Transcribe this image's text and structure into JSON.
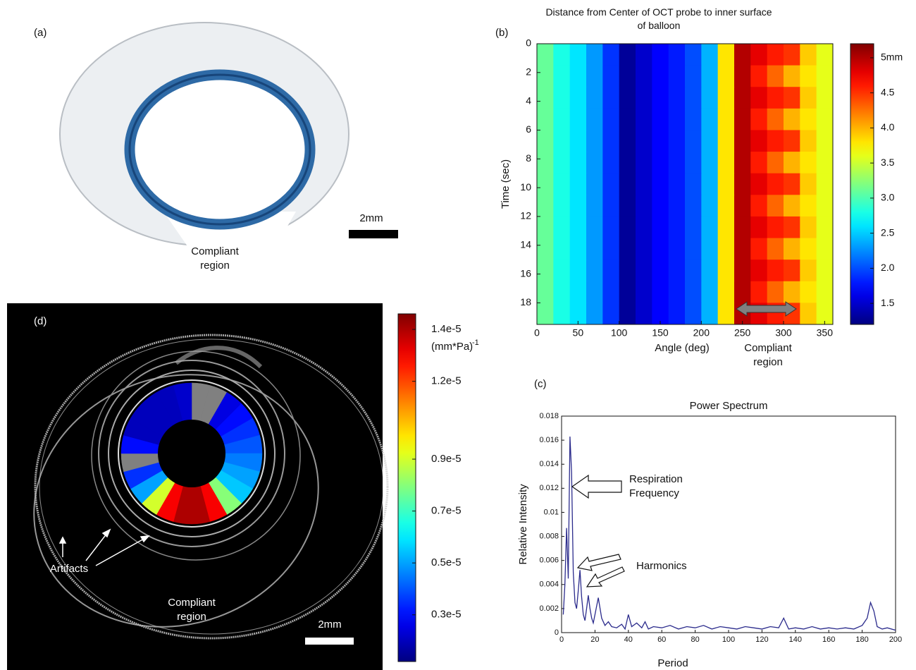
{
  "figure": {
    "a": {
      "label": "(a)",
      "annotation": "Compliant region",
      "scale_bar": "2mm"
    },
    "b": {
      "label": "(b)"
    },
    "c": {
      "label": "(c)"
    },
    "d": {
      "label": "(d)",
      "annotations": [
        "Artifacts",
        "Compliant region"
      ],
      "scale_bar": "2mm"
    }
  },
  "chart_data": [
    {
      "type": "heatmap",
      "title": "Distance from Center of OCT probe to inner surface of balloon",
      "x_label": "Angle (deg)",
      "y_label": "Time (sec)",
      "annotation": "Compliant region",
      "xlim": [
        0,
        360
      ],
      "xticks": [
        0,
        50,
        100,
        150,
        200,
        250,
        300,
        350
      ],
      "ylim": [
        0,
        19.5
      ],
      "y_reversed": true,
      "yticks": [
        0,
        2,
        4,
        6,
        8,
        10,
        12,
        14,
        16,
        18
      ],
      "x_bins": [
        0,
        20,
        40,
        60,
        80,
        100,
        120,
        140,
        160,
        180,
        200,
        220,
        240,
        260,
        280,
        300,
        320,
        340,
        360
      ],
      "y_bins": [
        0,
        1.5,
        3,
        4.5,
        6,
        7.5,
        9,
        10.5,
        12,
        13.5,
        15,
        16.5,
        18,
        19.5
      ],
      "z": [
        [
          3.1,
          2.8,
          2.6,
          2.3,
          1.9,
          1.3,
          1.5,
          1.7,
          1.8,
          2.0,
          2.4,
          3.8,
          5.0,
          4.8,
          4.6,
          4.5,
          3.9,
          3.6
        ],
        [
          3.1,
          2.8,
          2.6,
          2.3,
          1.9,
          1.3,
          1.5,
          1.7,
          1.8,
          2.0,
          2.4,
          3.8,
          5.0,
          4.6,
          4.3,
          4.0,
          3.8,
          3.6
        ],
        [
          3.1,
          2.8,
          2.6,
          2.3,
          1.9,
          1.3,
          1.5,
          1.7,
          1.8,
          2.0,
          2.4,
          3.8,
          5.0,
          4.8,
          4.6,
          4.5,
          3.9,
          3.6
        ],
        [
          3.1,
          2.8,
          2.6,
          2.3,
          1.9,
          1.3,
          1.5,
          1.7,
          1.8,
          2.0,
          2.4,
          3.8,
          5.0,
          4.6,
          4.3,
          4.0,
          3.8,
          3.6
        ],
        [
          3.1,
          2.8,
          2.6,
          2.3,
          1.9,
          1.3,
          1.5,
          1.7,
          1.8,
          2.0,
          2.4,
          3.8,
          5.0,
          4.8,
          4.6,
          4.5,
          3.9,
          3.6
        ],
        [
          3.1,
          2.8,
          2.6,
          2.3,
          1.9,
          1.3,
          1.5,
          1.7,
          1.8,
          2.0,
          2.4,
          3.8,
          5.0,
          4.6,
          4.3,
          4.0,
          3.8,
          3.6
        ],
        [
          3.1,
          2.8,
          2.6,
          2.3,
          1.9,
          1.3,
          1.5,
          1.7,
          1.8,
          2.0,
          2.4,
          3.8,
          5.0,
          4.8,
          4.6,
          4.5,
          3.9,
          3.6
        ],
        [
          3.1,
          2.8,
          2.6,
          2.3,
          1.9,
          1.3,
          1.5,
          1.7,
          1.8,
          2.0,
          2.4,
          3.8,
          5.0,
          4.6,
          4.3,
          4.0,
          3.8,
          3.6
        ],
        [
          3.1,
          2.8,
          2.6,
          2.3,
          1.9,
          1.3,
          1.5,
          1.7,
          1.8,
          2.0,
          2.4,
          3.8,
          5.0,
          4.8,
          4.6,
          4.5,
          3.9,
          3.6
        ],
        [
          3.1,
          2.8,
          2.6,
          2.3,
          1.9,
          1.3,
          1.5,
          1.7,
          1.8,
          2.0,
          2.4,
          3.8,
          5.0,
          4.6,
          4.3,
          4.0,
          3.8,
          3.6
        ],
        [
          3.1,
          2.8,
          2.6,
          2.3,
          1.9,
          1.3,
          1.5,
          1.7,
          1.8,
          2.0,
          2.4,
          3.8,
          5.0,
          4.8,
          4.6,
          4.5,
          3.9,
          3.6
        ],
        [
          3.1,
          2.8,
          2.6,
          2.3,
          1.9,
          1.3,
          1.5,
          1.7,
          1.8,
          2.0,
          2.4,
          3.8,
          5.0,
          4.6,
          4.3,
          4.0,
          3.8,
          3.6
        ],
        [
          3.1,
          2.8,
          2.6,
          2.3,
          1.9,
          1.3,
          1.5,
          1.7,
          1.8,
          2.0,
          2.4,
          3.8,
          5.0,
          4.8,
          4.6,
          4.5,
          3.9,
          3.6
        ]
      ],
      "colormap": "jet",
      "clim": [
        1.2,
        5.2
      ],
      "colorbar_ticks": [
        1.5,
        {
          "value": 2,
          "label": "2.0"
        },
        2.5,
        {
          "value": 3,
          "label": "3.0"
        },
        3.5,
        {
          "value": 4,
          "label": "4.0"
        },
        4.5,
        {
          "value": 5,
          "label": "5mm"
        }
      ]
    },
    {
      "type": "line",
      "title": "Power Spectrum",
      "x_label": "Period",
      "y_label": "Relative Intensity",
      "annotations": [
        "Respiration Frequency",
        "Harmonics"
      ],
      "color": "#2b2b8c",
      "xlim": [
        0,
        200
      ],
      "xticks": [
        0,
        20,
        40,
        60,
        80,
        100,
        120,
        140,
        160,
        180,
        200
      ],
      "ylim": [
        0,
        0.018
      ],
      "yticks": [
        0,
        0.002,
        0.004,
        0.006,
        0.008,
        0.01,
        0.012,
        0.014,
        0.016,
        0.018
      ],
      "x": [
        1,
        2,
        3,
        4,
        5,
        6,
        7,
        8,
        9,
        10,
        11,
        12,
        13,
        14,
        15,
        16,
        17,
        18,
        19,
        20,
        22,
        24,
        26,
        28,
        30,
        33,
        36,
        38,
        40,
        42,
        45,
        48,
        50,
        52,
        55,
        60,
        65,
        70,
        75,
        80,
        85,
        90,
        95,
        100,
        105,
        110,
        115,
        120,
        125,
        130,
        133,
        136,
        140,
        145,
        150,
        155,
        160,
        165,
        170,
        175,
        180,
        183,
        185,
        187,
        189,
        192,
        195,
        200
      ],
      "values": [
        0.0015,
        0.004,
        0.0087,
        0.0045,
        0.0163,
        0.0133,
        0.005,
        0.0025,
        0.002,
        0.0035,
        0.0052,
        0.003,
        0.0015,
        0.001,
        0.002,
        0.0031,
        0.002,
        0.0012,
        0.0008,
        0.0015,
        0.0029,
        0.0012,
        0.0006,
        0.0009,
        0.0005,
        0.0004,
        0.0007,
        0.0003,
        0.0015,
        0.0005,
        0.0008,
        0.0004,
        0.0009,
        0.0003,
        0.0005,
        0.0004,
        0.0006,
        0.0003,
        0.0005,
        0.0004,
        0.0006,
        0.0003,
        0.0005,
        0.0004,
        0.0003,
        0.0005,
        0.0004,
        0.0003,
        0.0005,
        0.0004,
        0.0012,
        0.0003,
        0.0004,
        0.0003,
        0.0005,
        0.0003,
        0.0004,
        0.0003,
        0.0004,
        0.0003,
        0.0006,
        0.0012,
        0.0025,
        0.0018,
        0.0005,
        0.0003,
        0.0004,
        0.0002
      ]
    },
    {
      "type": "polar",
      "theta_bins": [
        0,
        15,
        30,
        45,
        60,
        75,
        90,
        105,
        120,
        135,
        150,
        165,
        180,
        195,
        210,
        225,
        240,
        255,
        270,
        285,
        300,
        315,
        330,
        345,
        360
      ],
      "values": [
        null,
        null,
        2.5e-06,
        3e-06,
        3.5e-06,
        4e-06,
        4.5e-06,
        5e-06,
        5.5e-06,
        8e-06,
        1.3e-05,
        1.4e-05,
        1.4e-05,
        1.3e-05,
        9e-06,
        5e-06,
        3.5e-06,
        null,
        3e-06,
        2e-06,
        2e-06,
        2e-06,
        2e-06,
        2.2e-06
      ],
      "null_color": "#808080",
      "colormap": "jet",
      "clim": [
        1.2e-06,
        1.46e-05
      ],
      "colorbar_ticks": [
        {
          "value": 1.4e-05,
          "label": "1.4e-5"
        },
        {
          "value": 1.2e-05,
          "label": "1.2e-5"
        },
        {
          "value": 9e-06,
          "label": "0.9e-5"
        },
        {
          "value": 7e-06,
          "label": "0.7e-5"
        },
        {
          "value": 5e-06,
          "label": "0.5e-5"
        },
        {
          "value": 3e-06,
          "label": "0.3e-5"
        }
      ],
      "colorbar_unit": "(mm*Pa)",
      "colorbar_unit_exponent": "-1"
    }
  ]
}
